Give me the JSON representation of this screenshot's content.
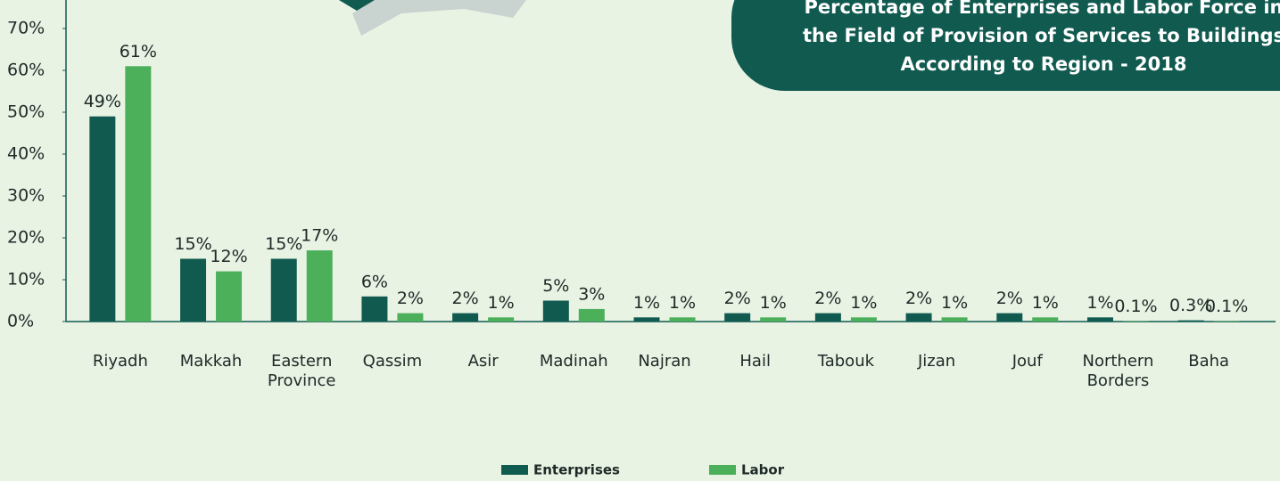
{
  "chart_data": {
    "type": "bar",
    "title": "Percentage of Enterprises and Labor Force in the Field of Provision of Services to Buildings According to Region - 2018",
    "categories": [
      "Riyadh",
      "Makkah",
      "Eastern Province",
      "Qassim",
      "Asir",
      "Madinah",
      "Najran",
      "Hail",
      "Tabouk",
      "Jizan",
      "Jouf",
      "Northern Borders",
      "Baha"
    ],
    "series": [
      {
        "name": "Enterprises",
        "color": "#115a50",
        "values": [
          49,
          15,
          15,
          6,
          2,
          5,
          1,
          2,
          2,
          2,
          2,
          1,
          0.3
        ],
        "value_labels": [
          "49%",
          "15%",
          "15%",
          "6%",
          "2%",
          "5%",
          "1%",
          "2%",
          "2%",
          "2%",
          "2%",
          "1%",
          "0.3%"
        ]
      },
      {
        "name": "Labor",
        "color": "#4caf5a",
        "values": [
          61,
          12,
          17,
          2,
          1,
          3,
          1,
          1,
          1,
          1,
          1,
          0.1,
          0.1
        ],
        "value_labels": [
          "61%",
          "12%",
          "17%",
          "2%",
          "1%",
          "3%",
          "1%",
          "1%",
          "1%",
          "1%",
          "1%",
          "0.1%",
          "0.1%"
        ]
      }
    ],
    "ylim": [
      0,
      70
    ],
    "yticks": [
      {
        "value": 0,
        "label": "0%"
      },
      {
        "value": 10,
        "label": "10%"
      },
      {
        "value": 20,
        "label": "20%"
      },
      {
        "value": 30,
        "label": "30%"
      },
      {
        "value": 40,
        "label": "40%"
      },
      {
        "value": 50,
        "label": "50%"
      },
      {
        "value": 60,
        "label": "60%"
      },
      {
        "value": 70,
        "label": "70%"
      }
    ],
    "legend": "bottom"
  }
}
